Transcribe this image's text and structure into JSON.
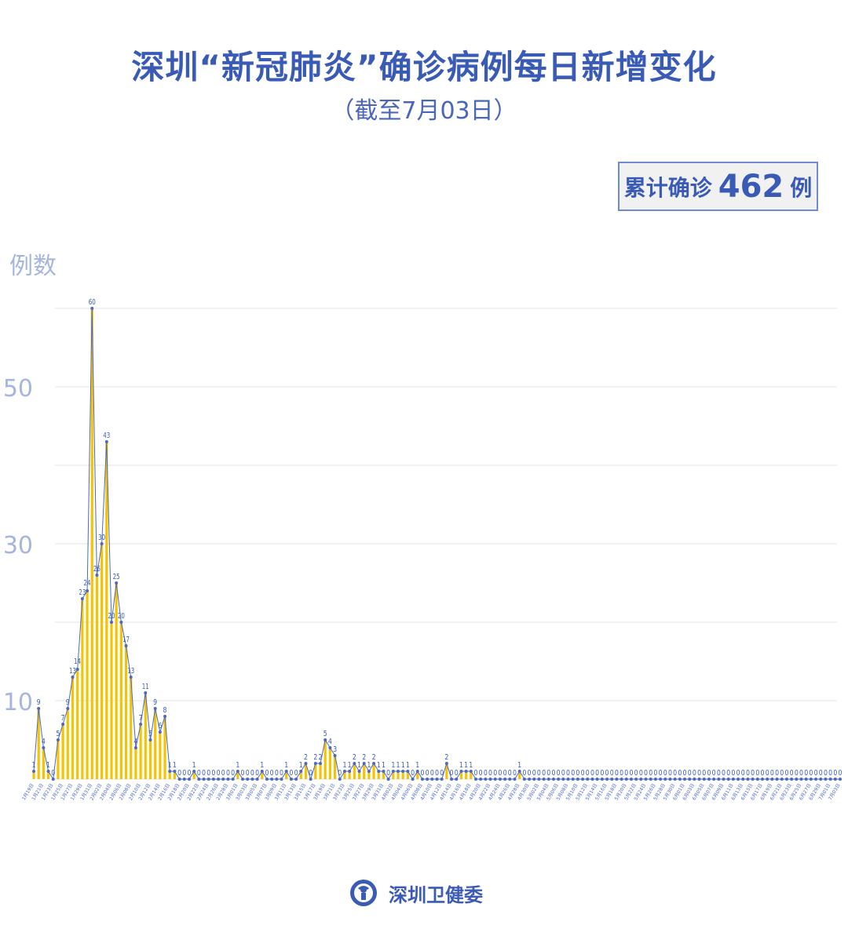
{
  "header": {
    "title": "深圳“新冠肺炎”确诊病例每日新增变化",
    "subtitle": "（截至7月03日）"
  },
  "summary": {
    "label": "累计确诊",
    "total": "462",
    "unit": "例"
  },
  "footer": {
    "org_name": "深圳卫健委",
    "logo_icon": "shenzhen-health-commission-emblem"
  },
  "colors": {
    "title": "#3a5bb5",
    "bar": "#f5c400",
    "line": "#4a68c4",
    "axis_text": "#a6b5df",
    "grid": "#e3e3e3"
  },
  "chart_data": {
    "type": "bar",
    "title": "深圳“新冠肺炎”确诊病例每日新增变化",
    "ylabel": "例数",
    "xlabel": "",
    "ylim": [
      0,
      60
    ],
    "yticks_labeled": [
      10,
      30,
      50
    ],
    "gridlines": [
      0,
      10,
      20,
      30,
      40,
      50,
      60
    ],
    "grid": true,
    "overlay": "line with markers and data labels",
    "x_label_every": 2,
    "categories": [
      "1月19日",
      "1月20日",
      "1月21日",
      "1月22日",
      "1月23日",
      "1月24日",
      "1月25日",
      "1月26日",
      "1月27日",
      "1月28日",
      "1月29日",
      "1月30日",
      "1月31日",
      "2月01日",
      "2月02日",
      "2月03日",
      "2月04日",
      "2月05日",
      "2月06日",
      "2月07日",
      "2月08日",
      "2月09日",
      "2月10日",
      "2月11日",
      "2月12日",
      "2月13日",
      "2月14日",
      "2月15日",
      "2月16日",
      "2月17日",
      "2月18日",
      "2月19日",
      "2月20日",
      "2月21日",
      "2月22日",
      "2月23日",
      "2月24日",
      "2月25日",
      "2月26日",
      "2月27日",
      "2月28日",
      "2月29日",
      "3月01日",
      "3月02日",
      "3月03日",
      "3月04日",
      "3月05日",
      "3月06日",
      "3月07日",
      "3月08日",
      "3月09日",
      "3月10日",
      "3月11日",
      "3月12日",
      "3月13日",
      "3月14日",
      "3月15日",
      "3月16日",
      "3月17日",
      "3月18日",
      "3月19日",
      "3月20日",
      "3月21日",
      "3月22日",
      "3月23日",
      "3月24日",
      "3月25日",
      "3月26日",
      "3月27日",
      "3月28日",
      "3月29日",
      "3月30日",
      "3月31日",
      "4月01日",
      "4月02日",
      "4月03日",
      "4月04日",
      "4月05日",
      "4月06日",
      "4月07日",
      "4月08日",
      "4月09日",
      "4月10日",
      "4月11日",
      "4月12日",
      "4月13日",
      "4月14日",
      "4月15日",
      "4月16日",
      "4月17日",
      "4月18日",
      "4月19日",
      "4月20日",
      "4月21日",
      "4月22日",
      "4月23日",
      "4月24日",
      "4月25日",
      "4月26日",
      "4月27日",
      "4月28日",
      "4月29日",
      "4月30日",
      "5月01日",
      "5月02日",
      "5月03日",
      "5月04日",
      "5月05日",
      "5月06日",
      "5月07日",
      "5月08日",
      "5月09日",
      "5月10日",
      "5月11日",
      "5月12日",
      "5月13日",
      "5月14日",
      "5月15日",
      "5月16日",
      "5月17日",
      "5月18日",
      "5月19日",
      "5月20日",
      "5月21日",
      "5月22日",
      "5月23日",
      "5月24日",
      "5月25日",
      "5月26日",
      "5月27日",
      "5月28日",
      "5月29日",
      "5月30日",
      "5月31日",
      "6月01日",
      "6月02日",
      "6月03日",
      "6月04日",
      "6月05日",
      "6月06日",
      "6月07日",
      "6月08日",
      "6月09日",
      "6月10日",
      "6月11日",
      "6月12日",
      "6月13日",
      "6月14日",
      "6月15日",
      "6月16日",
      "6月17日",
      "6月18日",
      "6月19日",
      "6月20日",
      "6月21日",
      "6月22日",
      "6月23日",
      "6月24日",
      "6月25日",
      "6月26日",
      "6月27日",
      "6月28日",
      "6月29日",
      "6月30日",
      "7月01日",
      "7月02日",
      "7月03日"
    ],
    "values": [
      1,
      9,
      4,
      1,
      0,
      5,
      7,
      9,
      13,
      14,
      23,
      24,
      60,
      26,
      30,
      43,
      20,
      25,
      20,
      17,
      13,
      4,
      7,
      11,
      5,
      9,
      6,
      8,
      1,
      1,
      0,
      0,
      0,
      1,
      0,
      0,
      0,
      0,
      0,
      0,
      0,
      0,
      1,
      0,
      0,
      0,
      0,
      1,
      0,
      0,
      0,
      0,
      1,
      0,
      0,
      1,
      2,
      0,
      2,
      2,
      5,
      4,
      3,
      0,
      1,
      1,
      2,
      1,
      2,
      1,
      2,
      1,
      1,
      0,
      1,
      1,
      1,
      1,
      0,
      1,
      0,
      0,
      0,
      0,
      0,
      2,
      0,
      0,
      1,
      1,
      1,
      0,
      0,
      0,
      0,
      0,
      0,
      0,
      0,
      0,
      1,
      0,
      0,
      0,
      0,
      0,
      0,
      0,
      0,
      0,
      0,
      0,
      0,
      0,
      0,
      0,
      0,
      0,
      0,
      0,
      0,
      0,
      0,
      0,
      0,
      0,
      0,
      0,
      0,
      0,
      0,
      0,
      0,
      0,
      0,
      0,
      0,
      0,
      0,
      0,
      0,
      0,
      0,
      0,
      0,
      0,
      0,
      0,
      0,
      0,
      0,
      0,
      0,
      0,
      0,
      0,
      0,
      0,
      0,
      0,
      0,
      0,
      0,
      0,
      0,
      0,
      0
    ]
  }
}
